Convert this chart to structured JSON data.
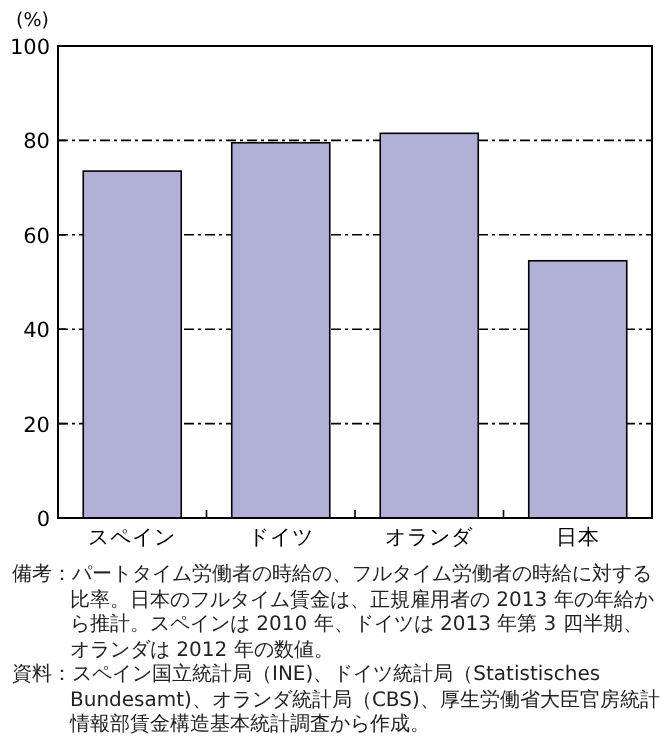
{
  "chart_data": {
    "type": "bar",
    "ylabel": "(%)",
    "categories": [
      "スペイン",
      "ドイツ",
      "オランダ",
      "日本"
    ],
    "values": [
      73.5,
      79.5,
      81.5,
      54.5
    ],
    "color": "#b0b0d6",
    "ylim": [
      0,
      100
    ],
    "yticks": [
      0,
      20,
      40,
      60,
      80,
      100
    ],
    "grid": "y",
    "annotations": [
      "備考：パートタイム労働者の時給の、フルタイム労働者の時給に対する比率。日本のフルタイム賃金は、正規雇用者の 2013 年の年給から推計。スペインは 2010 年、ドイツは 2013 年第 3 四半期、オランダは 2012 年の数値。",
      "資料：スペイン国立統計局（INE)、ドイツ統計局（Statistisches Bundesamt)、オランダ統計局（CBS)、厚生労働省大臣官房統計情報部賃金構造基本統計調査から作成。"
    ]
  }
}
